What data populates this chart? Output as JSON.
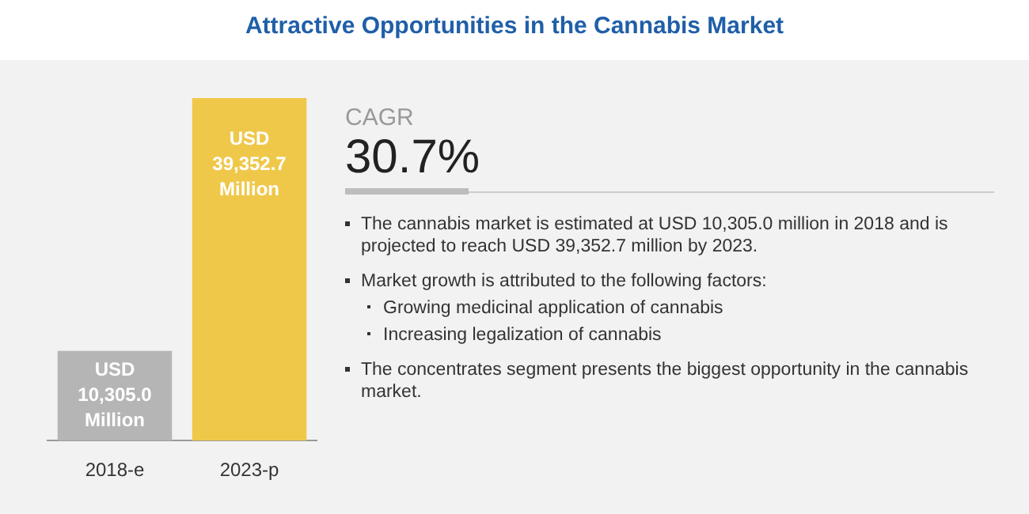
{
  "chart_data": {
    "type": "bar",
    "title": "Attractive Opportunities in the Cannabis Market",
    "categories": [
      "2018-e",
      "2023-p"
    ],
    "values": [
      10305.0,
      39352.7
    ],
    "colors": [
      "#b5b5b5",
      "#efc84a"
    ],
    "value_labels": [
      "USD 10,305.0 Million",
      "USD 39,352.7 Million"
    ],
    "tick_labels": "x",
    "grid": false,
    "annotations": [
      "CAGR",
      "30.7%",
      "The cannabis market is estimated at USD 10,305.0 million in 2018 and is projected to reach USD 39,352.7 million by 2023.",
      "Market growth is attributed to the following factors:",
      "Growing medicinal application of cannabis",
      "Increasing legalization of cannabis",
      "The concentrates segment presents the biggest opportunity in the cannabis market."
    ]
  }
}
